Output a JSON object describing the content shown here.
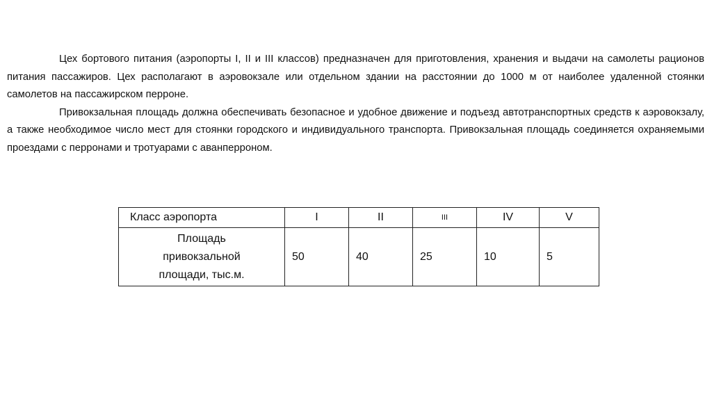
{
  "paragraphs": [
    "Цех бортового питания (аэропорты I, II и III классов) предназначен для приготовления, хранения и выдачи на самолеты рационов питания пассажиров. Цех располагают в аэровокзале или отдельном здании на расстоянии до 1000 м от наиболее удаленной стоянки самолетов на пассажирском перроне.",
    "Привокзальная площадь должна обеспечивать безопасное и удобное движение и подъезд автотранспортных средств к аэровокзалу, а также необходимое число мест для стоянки городского и индивидуального транспорта. Привокзальная площадь соединяется охраняемыми проездами с перронами и тротуарами с аванперроном."
  ],
  "table": {
    "header": [
      "Класс аэропорта",
      "I",
      "II",
      "III",
      "IV",
      "V"
    ],
    "row_label": [
      "Площадь",
      "привокзальной",
      "площади, тыс.м."
    ],
    "values": [
      "50",
      "40",
      "25",
      "10",
      "5"
    ]
  }
}
